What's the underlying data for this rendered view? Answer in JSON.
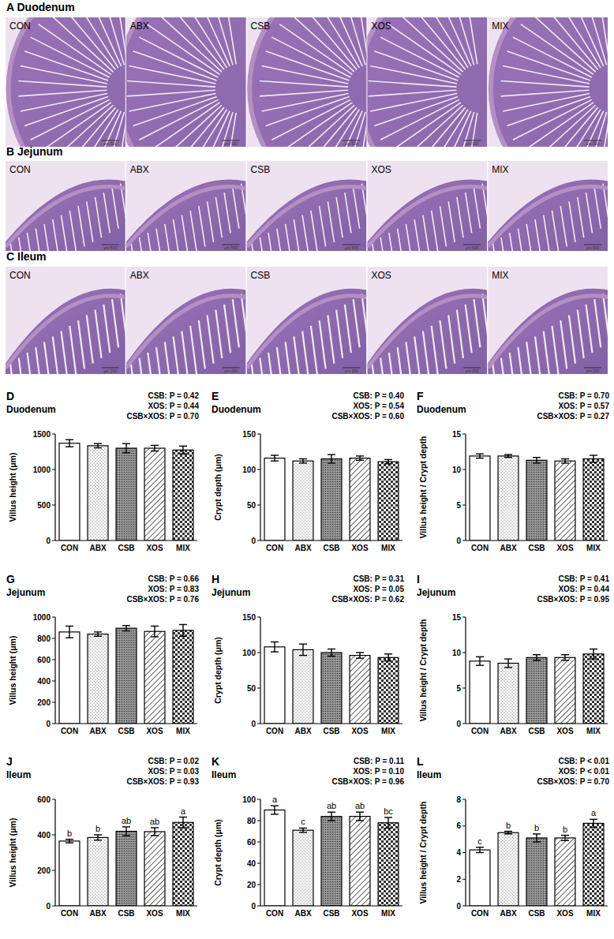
{
  "figure_panels": [
    {
      "title": "A Duodenum",
      "labels": [
        "CON",
        "ABX",
        "CSB",
        "XOS",
        "MIX"
      ],
      "scale_text": "μm 500"
    },
    {
      "title": "B Jejunum",
      "labels": [
        "CON",
        "ABX",
        "CSB",
        "XOS",
        "MIX"
      ],
      "scale_text": "μm 500"
    },
    {
      "title": "C Ileum",
      "labels": [
        "CON",
        "ABX",
        "CSB",
        "XOS",
        "MIX"
      ],
      "scale_text": "μm 250"
    }
  ],
  "chart_data": [
    {
      "type": "bar",
      "panel": "D",
      "title": "Duodenum",
      "y_label": "Villus height (μm)",
      "categories": [
        "CON",
        "ABX",
        "CSB",
        "XOS",
        "MIX"
      ],
      "values": [
        1370,
        1335,
        1300,
        1300,
        1275
      ],
      "errors": [
        50,
        30,
        65,
        40,
        55
      ],
      "ylim": [
        0,
        1500
      ],
      "yticks": [
        0,
        500,
        1000,
        1500
      ],
      "annotations": [
        "CSB: P = 0.42",
        "XOS: P = 0.44",
        "CSB×XOS: P = 0.70"
      ],
      "color": "#000000"
    },
    {
      "type": "bar",
      "panel": "E",
      "title": "Duodenum",
      "y_label": "Crypt depth (μm)",
      "categories": [
        "CON",
        "ABX",
        "CSB",
        "XOS",
        "MIX"
      ],
      "values": [
        116,
        112,
        115,
        116,
        111
      ],
      "errors": [
        4,
        3,
        6,
        3,
        3
      ],
      "ylim": [
        0,
        150
      ],
      "yticks": [
        0,
        50,
        100,
        150
      ],
      "annotations": [
        "CSB: P = 0.40",
        "XOS: P = 0.54",
        "CSB×XOS: P = 0.60"
      ],
      "color": "#000000"
    },
    {
      "type": "bar",
      "panel": "F",
      "title": "Duodenum",
      "y_label": "Villus height / Crypt depth",
      "categories": [
        "CON",
        "ABX",
        "CSB",
        "XOS",
        "MIX"
      ],
      "values": [
        11.9,
        11.9,
        11.3,
        11.2,
        11.5
      ],
      "errors": [
        0.3,
        0.2,
        0.4,
        0.3,
        0.5
      ],
      "ylim": [
        0,
        15
      ],
      "yticks": [
        0,
        5,
        10,
        15
      ],
      "annotations": [
        "CSB: P = 0.70",
        "XOS: P = 0.57",
        "CSB×XOS: P = 0.27"
      ],
      "color": "#000000"
    },
    {
      "type": "bar",
      "panel": "G",
      "title": "Jejunum",
      "y_label": "Villus height (μm)",
      "categories": [
        "CON",
        "ABX",
        "CSB",
        "XOS",
        "MIX"
      ],
      "values": [
        860,
        840,
        895,
        865,
        875
      ],
      "errors": [
        55,
        20,
        25,
        50,
        55
      ],
      "ylim": [
        0,
        1000
      ],
      "yticks": [
        0,
        200,
        400,
        600,
        800,
        1000
      ],
      "annotations": [
        "CSB: P = 0.66",
        "XOS: P = 0.83",
        "CSB×XOS: P = 0.76"
      ],
      "color": "#000000"
    },
    {
      "type": "bar",
      "panel": "H",
      "title": "Jejunum",
      "y_label": "Crypt depth (μm)",
      "categories": [
        "CON",
        "ABX",
        "CSB",
        "XOS",
        "MIX"
      ],
      "values": [
        108,
        104,
        100,
        96,
        93
      ],
      "errors": [
        7,
        8,
        5,
        4,
        5
      ],
      "ylim": [
        0,
        150
      ],
      "yticks": [
        0,
        50,
        100,
        150
      ],
      "annotations": [
        "CSB: P = 0.31",
        "XOS: P = 0.05",
        "CSB×XOS: P = 0.62"
      ],
      "color": "#000000"
    },
    {
      "type": "bar",
      "panel": "I",
      "title": "Jejunum",
      "y_label": "Villus height / Crypt depth",
      "categories": [
        "CON",
        "ABX",
        "CSB",
        "XOS",
        "MIX"
      ],
      "values": [
        8.8,
        8.5,
        9.3,
        9.3,
        9.8
      ],
      "errors": [
        0.6,
        0.6,
        0.4,
        0.4,
        0.7
      ],
      "ylim": [
        0,
        15
      ],
      "yticks": [
        0,
        5,
        10,
        15
      ],
      "annotations": [
        "CSB: P = 0.41",
        "XOS: P = 0.44",
        "CSB×XOS: P = 0.95"
      ],
      "color": "#000000"
    },
    {
      "type": "bar",
      "panel": "J",
      "title": "Ileum",
      "y_label": "Villus height (μm)",
      "categories": [
        "CON",
        "ABX",
        "CSB",
        "XOS",
        "MIX"
      ],
      "values": [
        365,
        385,
        420,
        418,
        470
      ],
      "errors": [
        10,
        15,
        25,
        22,
        30
      ],
      "ylim": [
        0,
        600
      ],
      "yticks": [
        0,
        200,
        400,
        600
      ],
      "annotations": [
        "CSB: P = 0.02",
        "XOS: P = 0.03",
        "CSB×XOS: P = 0.93"
      ],
      "letters": [
        "b",
        "b",
        "ab",
        "ab",
        "a"
      ],
      "color": "#000000"
    },
    {
      "type": "bar",
      "panel": "K",
      "title": "Ileum",
      "y_label": "Crypt depth (μm)",
      "categories": [
        "CON",
        "ABX",
        "CSB",
        "XOS",
        "MIX"
      ],
      "values": [
        90,
        71,
        84,
        84,
        78
      ],
      "errors": [
        4,
        2,
        4,
        4,
        5
      ],
      "ylim": [
        0,
        100
      ],
      "yticks": [
        0,
        20,
        40,
        60,
        80,
        100
      ],
      "annotations": [
        "CSB: P = 0.11",
        "XOS: P = 0.10",
        "CSB×XOS: P = 0.96"
      ],
      "letters": [
        "a",
        "c",
        "ab",
        "ab",
        "bc"
      ],
      "color": "#000000"
    },
    {
      "type": "bar",
      "panel": "L",
      "title": "Ileum",
      "y_label": "Villus height / Crypt depth",
      "categories": [
        "CON",
        "ABX",
        "CSB",
        "XOS",
        "MIX"
      ],
      "values": [
        4.2,
        5.5,
        5.1,
        5.1,
        6.2
      ],
      "errors": [
        0.2,
        0.1,
        0.3,
        0.2,
        0.3
      ],
      "ylim": [
        0,
        8
      ],
      "yticks": [
        0,
        2,
        4,
        6,
        8
      ],
      "annotations": [
        "CSB: P < 0.01",
        "XOS: P < 0.01",
        "CSB×XOS: P = 0.70"
      ],
      "letters": [
        "c",
        "b",
        "b",
        "b",
        "a"
      ],
      "color": "#000000"
    }
  ]
}
